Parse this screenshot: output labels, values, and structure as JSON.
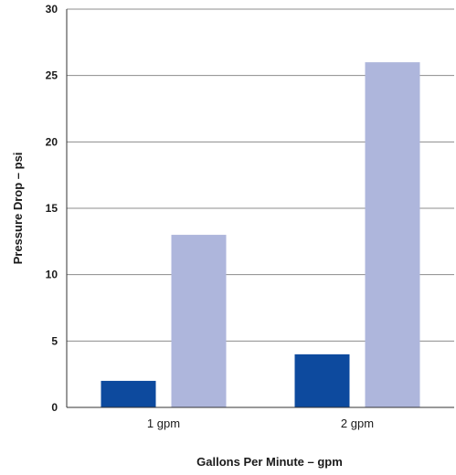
{
  "chart_data": {
    "type": "bar",
    "title": "",
    "xlabel": "Gallons Per Minute – gpm",
    "ylabel": "Pressure Drop – psi",
    "categories": [
      "1 gpm",
      "2 gpm"
    ],
    "series": [
      {
        "color": "#0d4a9e",
        "values": [
          2,
          4
        ]
      },
      {
        "color": "#aeb6dc",
        "values": [
          13,
          26
        ]
      }
    ],
    "ylim": [
      0,
      30
    ],
    "yticks": [
      0,
      5,
      10,
      15,
      20,
      25,
      30
    ],
    "grid": true,
    "legend": "none"
  }
}
